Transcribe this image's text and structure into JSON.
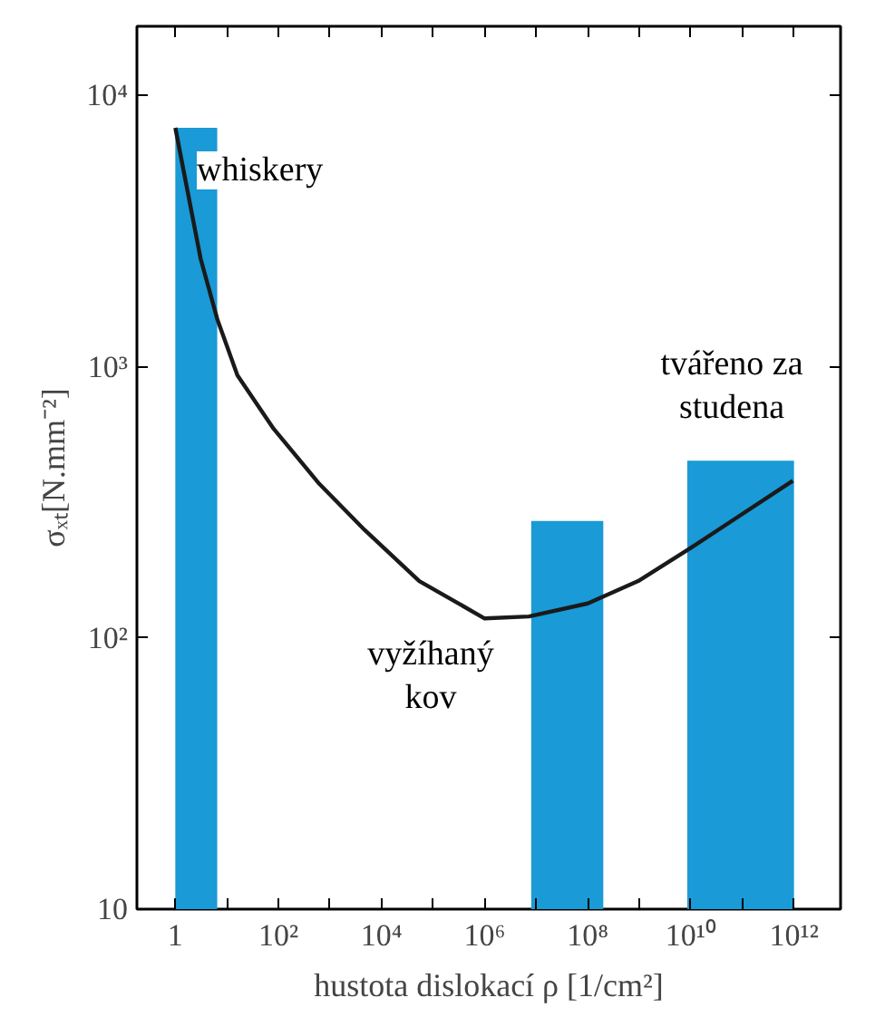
{
  "chart_data": {
    "type": "histogram",
    "log": "xy",
    "grid": false,
    "xlabel": "hustota dislokací ρ [1/cm²]",
    "ylabel": "σₓₜ[N.mm⁻²]",
    "bins": [
      1,
      6.5,
      8000000,
      200000000,
      8500000000,
      1000000000000
    ],
    "values": [
      7600,
      null,
      270,
      null,
      450
    ],
    "color": "#1a9ad6",
    "xlim": [
      0.18,
      8000000000000
    ],
    "ylim": [
      10,
      18000
    ],
    "xticks": [
      {
        "value": 1,
        "label": "1"
      },
      {
        "value": 10,
        "label": null
      },
      {
        "value": 100,
        "label": "10²"
      },
      {
        "value": 1000,
        "label": null
      },
      {
        "value": 10000,
        "label": "10⁴"
      },
      {
        "value": 100000,
        "label": null
      },
      {
        "value": 1000000,
        "label": "10⁶"
      },
      {
        "value": 10000000,
        "label": null
      },
      {
        "value": 100000000,
        "label": "10⁸"
      },
      {
        "value": 1000000000,
        "label": null
      },
      {
        "value": 10000000000,
        "label": "10¹⁰"
      },
      {
        "value": 100000000000,
        "label": null
      },
      {
        "value": 1000000000000,
        "label": "10¹²"
      }
    ],
    "yticks": [
      {
        "value": 10,
        "label": "10"
      },
      {
        "value": 100,
        "label": "10²"
      },
      {
        "value": 1000,
        "label": "10³"
      },
      {
        "value": 10000,
        "label": "10⁴"
      }
    ],
    "series": [
      {
        "type": "line",
        "color": "#1a1a1a",
        "line_style": "solid",
        "x": [
          1,
          3.1,
          6.5,
          16,
          81,
          620,
          4700,
          54000,
          1000000,
          7200000,
          100000000,
          950000000,
          10000000000,
          83000000000,
          950000000000
        ],
        "values": [
          7600,
          2500,
          1500,
          930,
          590,
          370,
          250,
          162,
          118,
          120,
          134,
          162,
          215,
          280,
          380
        ]
      }
    ],
    "annotations": [
      "whiskery",
      "tvářeno za\nstudena",
      "vyžíhaný\nkov"
    ]
  }
}
